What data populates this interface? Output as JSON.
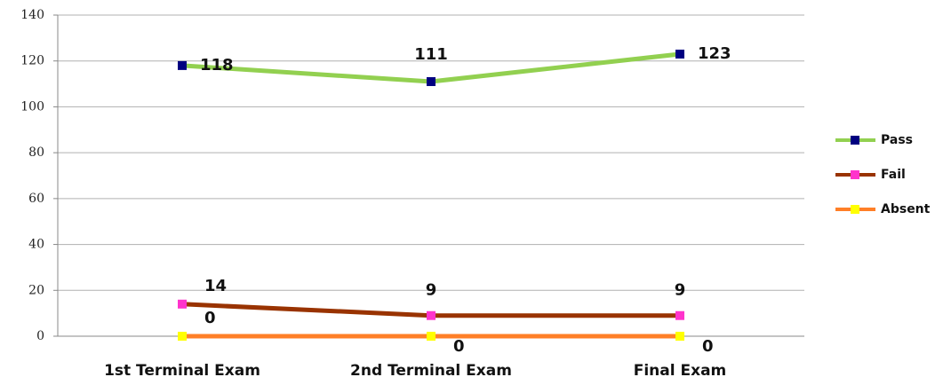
{
  "chart_data": {
    "type": "line",
    "categories": [
      "1st Terminal Exam",
      "2nd Terminal Exam",
      "Final Exam"
    ],
    "series": [
      {
        "name": "Pass",
        "color": "#92d050",
        "marker_color": "#000080",
        "values": [
          118,
          111,
          123
        ]
      },
      {
        "name": "Fail",
        "color": "#993300",
        "marker_color": "#ff33cc",
        "values": [
          14,
          9,
          9
        ]
      },
      {
        "name": "Absent",
        "color": "#ff7f27",
        "marker_color": "#ffff00",
        "values": [
          0,
          0,
          0
        ]
      }
    ],
    "ylim": [
      0,
      140
    ],
    "yticks": [
      0,
      20,
      40,
      60,
      80,
      100,
      120,
      140
    ],
    "grid": true,
    "legend": "right"
  }
}
